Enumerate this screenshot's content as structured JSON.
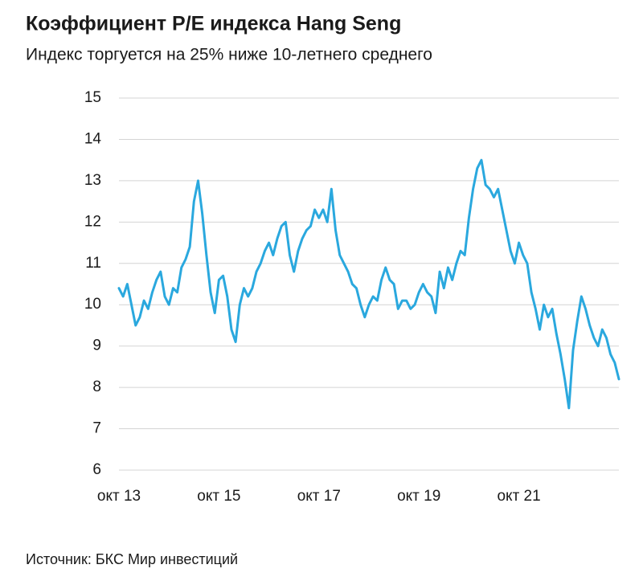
{
  "chart_data": {
    "type": "line",
    "title": "Коэффициент P/E индекса Hang Seng",
    "subtitle": "Индекс торгуется на 25% ниже 10-летнего среднего",
    "source": "Источник: БКС Мир инвестиций",
    "categories": [
      "окт 13",
      null,
      null,
      null,
      null,
      null,
      null,
      null,
      null,
      null,
      null,
      null,
      null,
      null,
      null,
      null,
      null,
      null,
      null,
      null,
      null,
      null,
      null,
      null,
      "окт 15",
      null,
      null,
      null,
      null,
      null,
      null,
      null,
      null,
      null,
      null,
      null,
      null,
      null,
      null,
      null,
      null,
      null,
      null,
      null,
      null,
      null,
      null,
      null,
      "окт 17",
      null,
      null,
      null,
      null,
      null,
      null,
      null,
      null,
      null,
      null,
      null,
      null,
      null,
      null,
      null,
      null,
      null,
      null,
      null,
      null,
      null,
      null,
      null,
      "окт 19",
      null,
      null,
      null,
      null,
      null,
      null,
      null,
      null,
      null,
      null,
      null,
      null,
      null,
      null,
      null,
      null,
      null,
      null,
      null,
      null,
      null,
      null,
      null,
      "окт 21",
      null,
      null,
      null,
      null,
      null,
      null,
      null,
      null,
      null,
      null,
      null,
      null,
      null,
      null,
      null,
      null,
      null,
      null,
      null,
      null,
      null,
      null,
      null,
      null
    ],
    "values": [
      10.4,
      10.2,
      10.5,
      10.0,
      9.5,
      9.7,
      10.1,
      9.9,
      10.3,
      10.6,
      10.8,
      10.2,
      10.0,
      10.4,
      10.3,
      10.9,
      11.1,
      11.4,
      12.5,
      13.0,
      12.2,
      11.2,
      10.3,
      9.8,
      10.6,
      10.7,
      10.2,
      9.4,
      9.1,
      10.0,
      10.4,
      10.2,
      10.4,
      10.8,
      11.0,
      11.3,
      11.5,
      11.2,
      11.6,
      11.9,
      12.0,
      11.2,
      10.8,
      11.3,
      11.6,
      11.8,
      11.9,
      12.3,
      12.1,
      12.3,
      12.0,
      12.8,
      11.8,
      11.2,
      11.0,
      10.8,
      10.5,
      10.4,
      10.0,
      9.7,
      10.0,
      10.2,
      10.1,
      10.6,
      10.9,
      10.6,
      10.5,
      9.9,
      10.1,
      10.1,
      9.9,
      10.0,
      10.3,
      10.5,
      10.3,
      10.2,
      9.8,
      10.8,
      10.4,
      10.9,
      10.6,
      11.0,
      11.3,
      11.2,
      12.1,
      12.8,
      13.3,
      13.5,
      12.9,
      12.8,
      12.6,
      12.8,
      12.3,
      11.8,
      11.3,
      11.0,
      11.5,
      11.2,
      11.0,
      10.3,
      9.9,
      9.4,
      10.0,
      9.7,
      9.9,
      9.3,
      8.8,
      8.2,
      7.5,
      8.9,
      9.6,
      10.2,
      9.9,
      9.5,
      9.2,
      9.0,
      9.4,
      9.2,
      8.8,
      8.6,
      8.2
    ],
    "color": "#2aa8de",
    "ylim": [
      6,
      15
    ],
    "yticks": [
      6,
      7,
      8,
      9,
      10,
      11,
      12,
      13,
      14,
      15
    ],
    "grid": true
  }
}
